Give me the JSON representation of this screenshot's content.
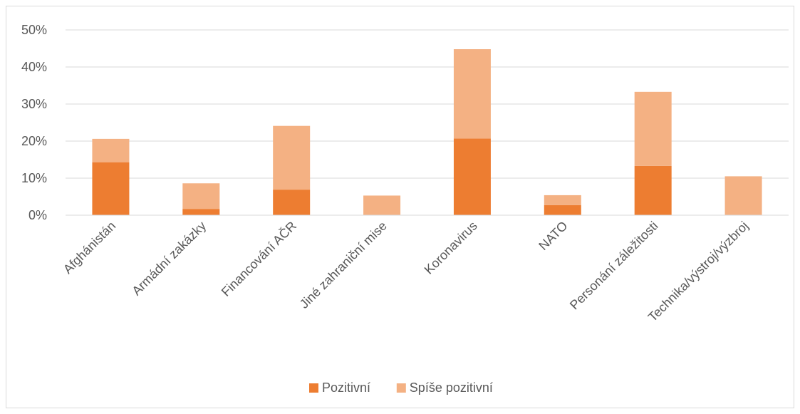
{
  "chart_data": {
    "type": "bar",
    "stacked": true,
    "categories": [
      "Afghánistán",
      "Armádní zakázky",
      "Financování AČR",
      "Jiné zahraniční mise",
      "Koronavirus",
      "NATO",
      "Personání záležitosti",
      "Technika/výstroj/výzbroj"
    ],
    "series": [
      {
        "name": "Pozitivní",
        "color": "#ed7d31",
        "values": [
          14.3,
          1.7,
          6.9,
          0.0,
          20.7,
          2.7,
          13.3,
          0.0
        ]
      },
      {
        "name": "Spíše pozitivní",
        "color": "#f4b183",
        "values": [
          6.3,
          6.9,
          17.2,
          5.3,
          24.1,
          2.7,
          20.0,
          10.5
        ]
      }
    ],
    "ylim": [
      0,
      50
    ],
    "yticks": [
      0,
      10,
      20,
      30,
      40,
      50
    ],
    "ytick_labels": [
      "0%",
      "10%",
      "20%",
      "30%",
      "40%",
      "50%"
    ],
    "gridlines": true,
    "legend_position": "bottom",
    "title": "",
    "xlabel": "",
    "ylabel": ""
  }
}
